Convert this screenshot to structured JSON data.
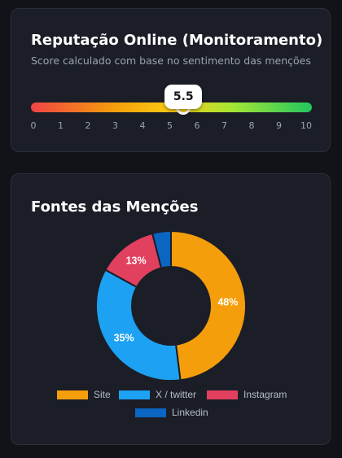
{
  "reputation": {
    "title": "Reputação Online (Monitoramento)",
    "subtitle": "Score calculado com base no sentimento das menções",
    "score": 5.5,
    "score_label": "5.5",
    "scale_min": 0,
    "scale_max": 10,
    "ticks": [
      "0",
      "1",
      "2",
      "3",
      "4",
      "5",
      "6",
      "7",
      "8",
      "9",
      "10"
    ]
  },
  "sources": {
    "title": "Fontes das Menções",
    "chart_data": {
      "type": "pie",
      "variant": "donut",
      "categories": [
        "Site",
        "X / twitter",
        "Instagram",
        "Linkedin"
      ],
      "values": [
        48,
        35,
        13,
        4
      ],
      "data_labels": [
        "48%",
        "35%",
        "13%",
        ""
      ],
      "colors": [
        "#f59e0b",
        "#1da1f2",
        "#e1405e",
        "#0a66c2"
      ],
      "legend_position": "bottom"
    }
  }
}
